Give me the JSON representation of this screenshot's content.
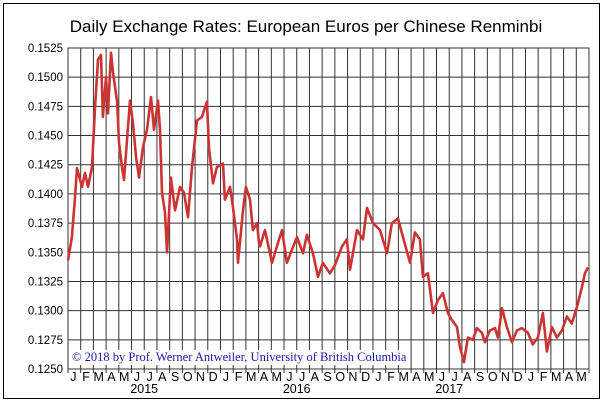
{
  "chart_data": {
    "type": "line",
    "title": "Daily Exchange Rates: European Euros per Chinese Renminbi",
    "xlabel": "",
    "ylabel": "",
    "x_unit": "months since start of January 2015",
    "xlim": [
      0,
      41
    ],
    "ylim": [
      0.125,
      0.1525
    ],
    "grid": true,
    "yticks": [
      "0.1250",
      "0.1275",
      "0.1300",
      "0.1325",
      "0.1350",
      "0.1375",
      "0.1400",
      "0.1425",
      "0.1450",
      "0.1475",
      "0.1500",
      "0.1525"
    ],
    "month_labels": [
      "J",
      "F",
      "M",
      "A",
      "M",
      "J",
      "J",
      "A",
      "S",
      "O",
      "N",
      "D",
      "J",
      "F",
      "M",
      "A",
      "M",
      "J",
      "J",
      "A",
      "S",
      "O",
      "N",
      "D",
      "J",
      "F",
      "M",
      "A",
      "M",
      "J",
      "J",
      "A",
      "S",
      "O",
      "N",
      "D",
      "J",
      "F",
      "M",
      "A",
      "M"
    ],
    "year_labels": [
      {
        "label": "2015",
        "center_month": 6
      },
      {
        "label": "2016",
        "center_month": 18
      },
      {
        "label": "2017",
        "center_month": 30
      }
    ],
    "line_color": "#cc3333",
    "series": [
      {
        "name": "EUR per CNY",
        "x": [
          0,
          0.31,
          0.55,
          0.71,
          1.1,
          1.34,
          1.57,
          1.89,
          2.12,
          2.36,
          2.6,
          2.75,
          2.99,
          3.15,
          3.38,
          3.54,
          3.86,
          4.01,
          4.25,
          4.41,
          4.64,
          4.88,
          5.11,
          5.35,
          5.59,
          5.9,
          6.22,
          6.53,
          6.77,
          7.08,
          7.24,
          7.4,
          7.63,
          7.79,
          8.1,
          8.42,
          8.81,
          9.13,
          9.44,
          9.76,
          10.15,
          10.54,
          10.94,
          11.09,
          11.41,
          11.72,
          12.2,
          12.35,
          12.75,
          12.98,
          13.3,
          13.38,
          13.77,
          14.0,
          14.32,
          14.55,
          14.87,
          15.03,
          15.11,
          15.5,
          16.05,
          16.44,
          16.84,
          17.23,
          17.62,
          18.02,
          18.49,
          18.8,
          19.28,
          19.67,
          20.06,
          20.61,
          21.01,
          21.56,
          21.95,
          22.19,
          22.74,
          23.21,
          23.53,
          24.0,
          24.55,
          25.1,
          25.49,
          25.96,
          26.36,
          26.91,
          27.3,
          27.69,
          27.93,
          28.32,
          28.72,
          29.11,
          29.5,
          29.9,
          30.21,
          30.61,
          30.84,
          31.16,
          31.47,
          31.86,
          32.18,
          32.57,
          32.81,
          33.2,
          33.6,
          33.83,
          34.15,
          34.54,
          34.93,
          35.33,
          35.72,
          36.19,
          36.58,
          36.98,
          37.37,
          37.69,
          38.08,
          38.47,
          38.87,
          39.26,
          39.65,
          40.05,
          40.44,
          40.68,
          40.91
        ],
        "values": [
          0.1343,
          0.1363,
          0.1397,
          0.1422,
          0.1406,
          0.1418,
          0.1406,
          0.1423,
          0.1472,
          0.1515,
          0.1519,
          0.1466,
          0.15,
          0.1469,
          0.1521,
          0.1504,
          0.1479,
          0.1444,
          0.1423,
          0.1412,
          0.1446,
          0.148,
          0.1461,
          0.1432,
          0.1414,
          0.144,
          0.1455,
          0.1483,
          0.1455,
          0.148,
          0.1455,
          0.1401,
          0.1384,
          0.135,
          0.1414,
          0.1386,
          0.1406,
          0.1401,
          0.138,
          0.1423,
          0.1463,
          0.1466,
          0.1479,
          0.144,
          0.1409,
          0.1423,
          0.1426,
          0.1395,
          0.1406,
          0.1389,
          0.1361,
          0.1341,
          0.1386,
          0.1406,
          0.1395,
          0.1369,
          0.1375,
          0.1358,
          0.1355,
          0.1369,
          0.1341,
          0.1355,
          0.1369,
          0.1341,
          0.1352,
          0.1363,
          0.1349,
          0.1365,
          0.1349,
          0.1329,
          0.1341,
          0.1332,
          0.1339,
          0.1355,
          0.1361,
          0.1335,
          0.1369,
          0.1361,
          0.1388,
          0.1375,
          0.1369,
          0.1349,
          0.1375,
          0.1379,
          0.1363,
          0.1341,
          0.1367,
          0.1361,
          0.1329,
          0.1332,
          0.1298,
          0.1309,
          0.1315,
          0.1298,
          0.1292,
          0.1286,
          0.1269,
          0.1256,
          0.1277,
          0.1275,
          0.1285,
          0.1281,
          0.1273,
          0.1283,
          0.1285,
          0.1277,
          0.1302,
          0.1286,
          0.1273,
          0.1283,
          0.1285,
          0.1281,
          0.1271,
          0.1277,
          0.1298,
          0.1265,
          0.1286,
          0.1277,
          0.1283,
          0.1295,
          0.1289,
          0.1303,
          0.132,
          0.1332,
          0.1337
        ]
      }
    ]
  },
  "copyright": "© 2018 by Prof. Werner Antweiler, University of British Columbia"
}
